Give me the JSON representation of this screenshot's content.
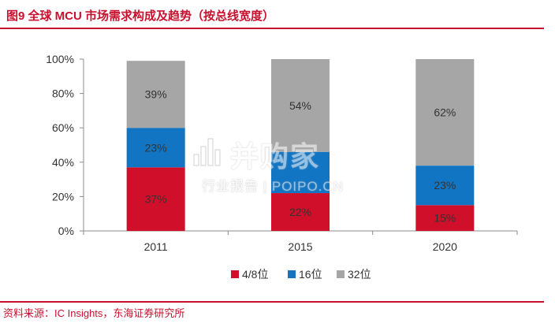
{
  "header": {
    "title": "图9 全球 MCU 市场需求构成及趋势（按总线宽度）"
  },
  "chart_data": {
    "type": "bar",
    "stacked": true,
    "categories": [
      "2011",
      "2015",
      "2020"
    ],
    "series": [
      {
        "name": "4/8位",
        "color": "#d0102b",
        "values": [
          37,
          22,
          15
        ],
        "labels": [
          "37%",
          "22%",
          "15%"
        ]
      },
      {
        "name": "16位",
        "color": "#1175c4",
        "values": [
          23,
          24,
          23
        ],
        "labels": [
          "23%",
          "",
          "23%"
        ]
      },
      {
        "name": "32位",
        "color": "#a6a6a6",
        "values": [
          39,
          54,
          62
        ],
        "labels": [
          "39%",
          "54%",
          "62%"
        ]
      }
    ],
    "ylim": [
      0,
      100
    ],
    "yticks": [
      "0%",
      "20%",
      "40%",
      "60%",
      "80%",
      "100%"
    ],
    "grid": false,
    "legend_position": "bottom"
  },
  "watermark": {
    "name": "并购家",
    "sub": "行业报告 | POIPO.CN"
  },
  "footer": {
    "source": "资料来源：IC Insights，东海证券研究所"
  }
}
